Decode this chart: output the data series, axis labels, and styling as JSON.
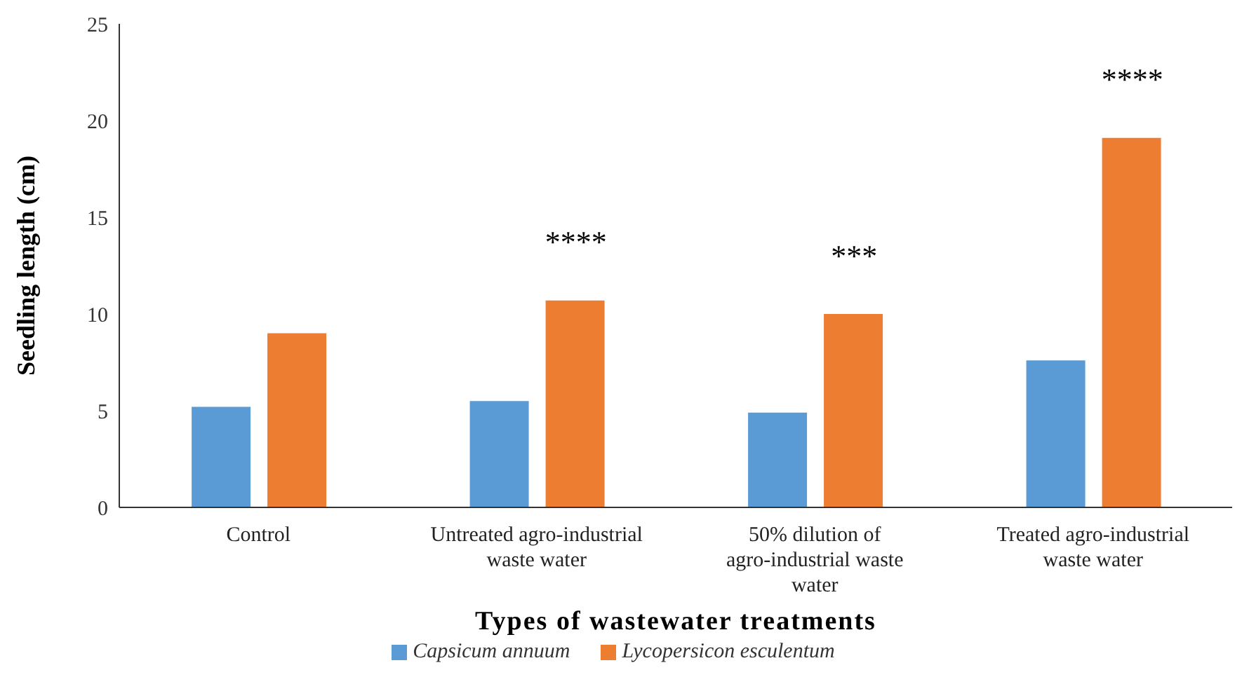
{
  "chart_data": {
    "type": "bar",
    "xlabel": "Types of wastewater treatments",
    "ylabel": "Seedling length (cm)",
    "categories": [
      "Control",
      "Untreated agro-industrial waste water",
      "50% dilution of agro-industrial waste water",
      "Treated agro-industrial waste water"
    ],
    "series": [
      {
        "name": "Capsicum annuum",
        "color": "#5b9bd5",
        "values": [
          5.2,
          5.5,
          4.9,
          7.6
        ]
      },
      {
        "name": "Lycopersicon esculentum",
        "color": "#ed7d31",
        "values": [
          9.0,
          10.7,
          10.0,
          19.1
        ]
      }
    ],
    "ylim": [
      0,
      25
    ],
    "yticks": [
      0,
      5,
      10,
      15,
      20,
      25
    ],
    "grid": false,
    "legend": "bottom",
    "annotations": [
      "****",
      "***",
      "****"
    ]
  }
}
